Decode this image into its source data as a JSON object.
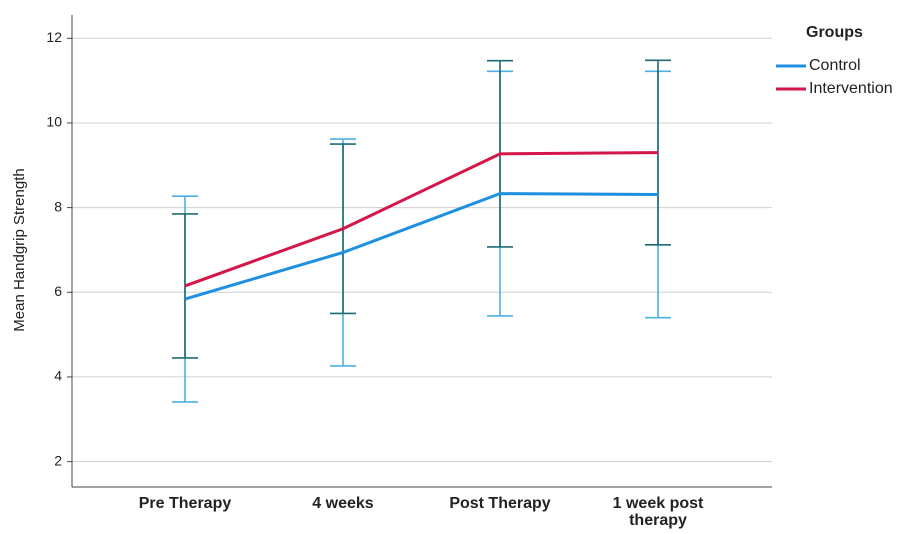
{
  "chart_data": {
    "type": "line",
    "y_label": "Mean Handgrip Strength",
    "categories": [
      "Pre Therapy",
      "4 weeks",
      "Post Therapy",
      "1 week post therapy"
    ],
    "legend_title": "Groups",
    "legend": "top-right",
    "grid": true,
    "ylim": [
      1.4,
      12.55
    ],
    "yticks": [
      2,
      4,
      6,
      8,
      10,
      12
    ],
    "series": [
      {
        "name": "Control",
        "color": "#1f8fe0",
        "error_color": "#4eb0e2",
        "values": [
          5.84,
          6.94,
          8.33,
          8.31
        ],
        "errors": [
          2.43,
          2.68,
          2.89,
          2.91
        ]
      },
      {
        "name": "Intervention",
        "color": "#d41648",
        "error_color": "#1e6b76",
        "values": [
          6.15,
          7.5,
          9.27,
          9.3
        ],
        "errors": [
          1.7,
          2.0,
          2.2,
          2.18
        ]
      }
    ]
  }
}
